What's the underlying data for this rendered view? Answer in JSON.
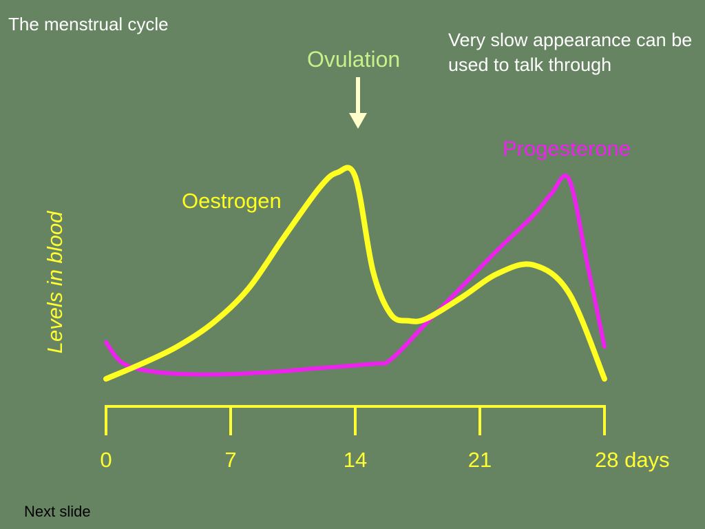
{
  "slide": {
    "title": "The menstrual cycle",
    "note": "Very slow appearance can be used to talk through",
    "next_label": "Next slide"
  },
  "colors": {
    "background": "#668462",
    "oestrogen": "#ffff22",
    "progesterone": "#ee22ee",
    "axis": "#ffff33",
    "ovulation": "#c8f08a",
    "arrow": "#ffffcc"
  },
  "chart_data": {
    "type": "line",
    "ylabel": "Levels in blood",
    "x_tick_labels": [
      "0",
      "7",
      "14",
      "21",
      "28 days"
    ],
    "x_ticks": [
      0,
      7,
      14,
      21,
      28
    ],
    "xlim": [
      0,
      28
    ],
    "ylim": [
      0,
      100
    ],
    "annotation": {
      "label": "Ovulation",
      "x": 14
    },
    "series": [
      {
        "name": "Oestrogen",
        "x": [
          0,
          2,
          4,
          6,
          8,
          10,
          12,
          13,
          14,
          15,
          16,
          17,
          18,
          20,
          22,
          24,
          26,
          28
        ],
        "y": [
          0,
          7,
          15,
          26,
          42,
          66,
          89,
          96,
          94,
          50,
          30,
          27,
          28,
          38,
          49,
          53,
          40,
          0
        ]
      },
      {
        "name": "Progesterone",
        "x": [
          0,
          1,
          3,
          6,
          9,
          12,
          15,
          16,
          18,
          20,
          22,
          24,
          25,
          26,
          27,
          28
        ],
        "y": [
          17,
          7,
          3,
          2,
          3,
          5,
          7,
          9,
          26,
          43,
          60,
          76,
          86,
          93,
          55,
          15
        ]
      }
    ]
  }
}
